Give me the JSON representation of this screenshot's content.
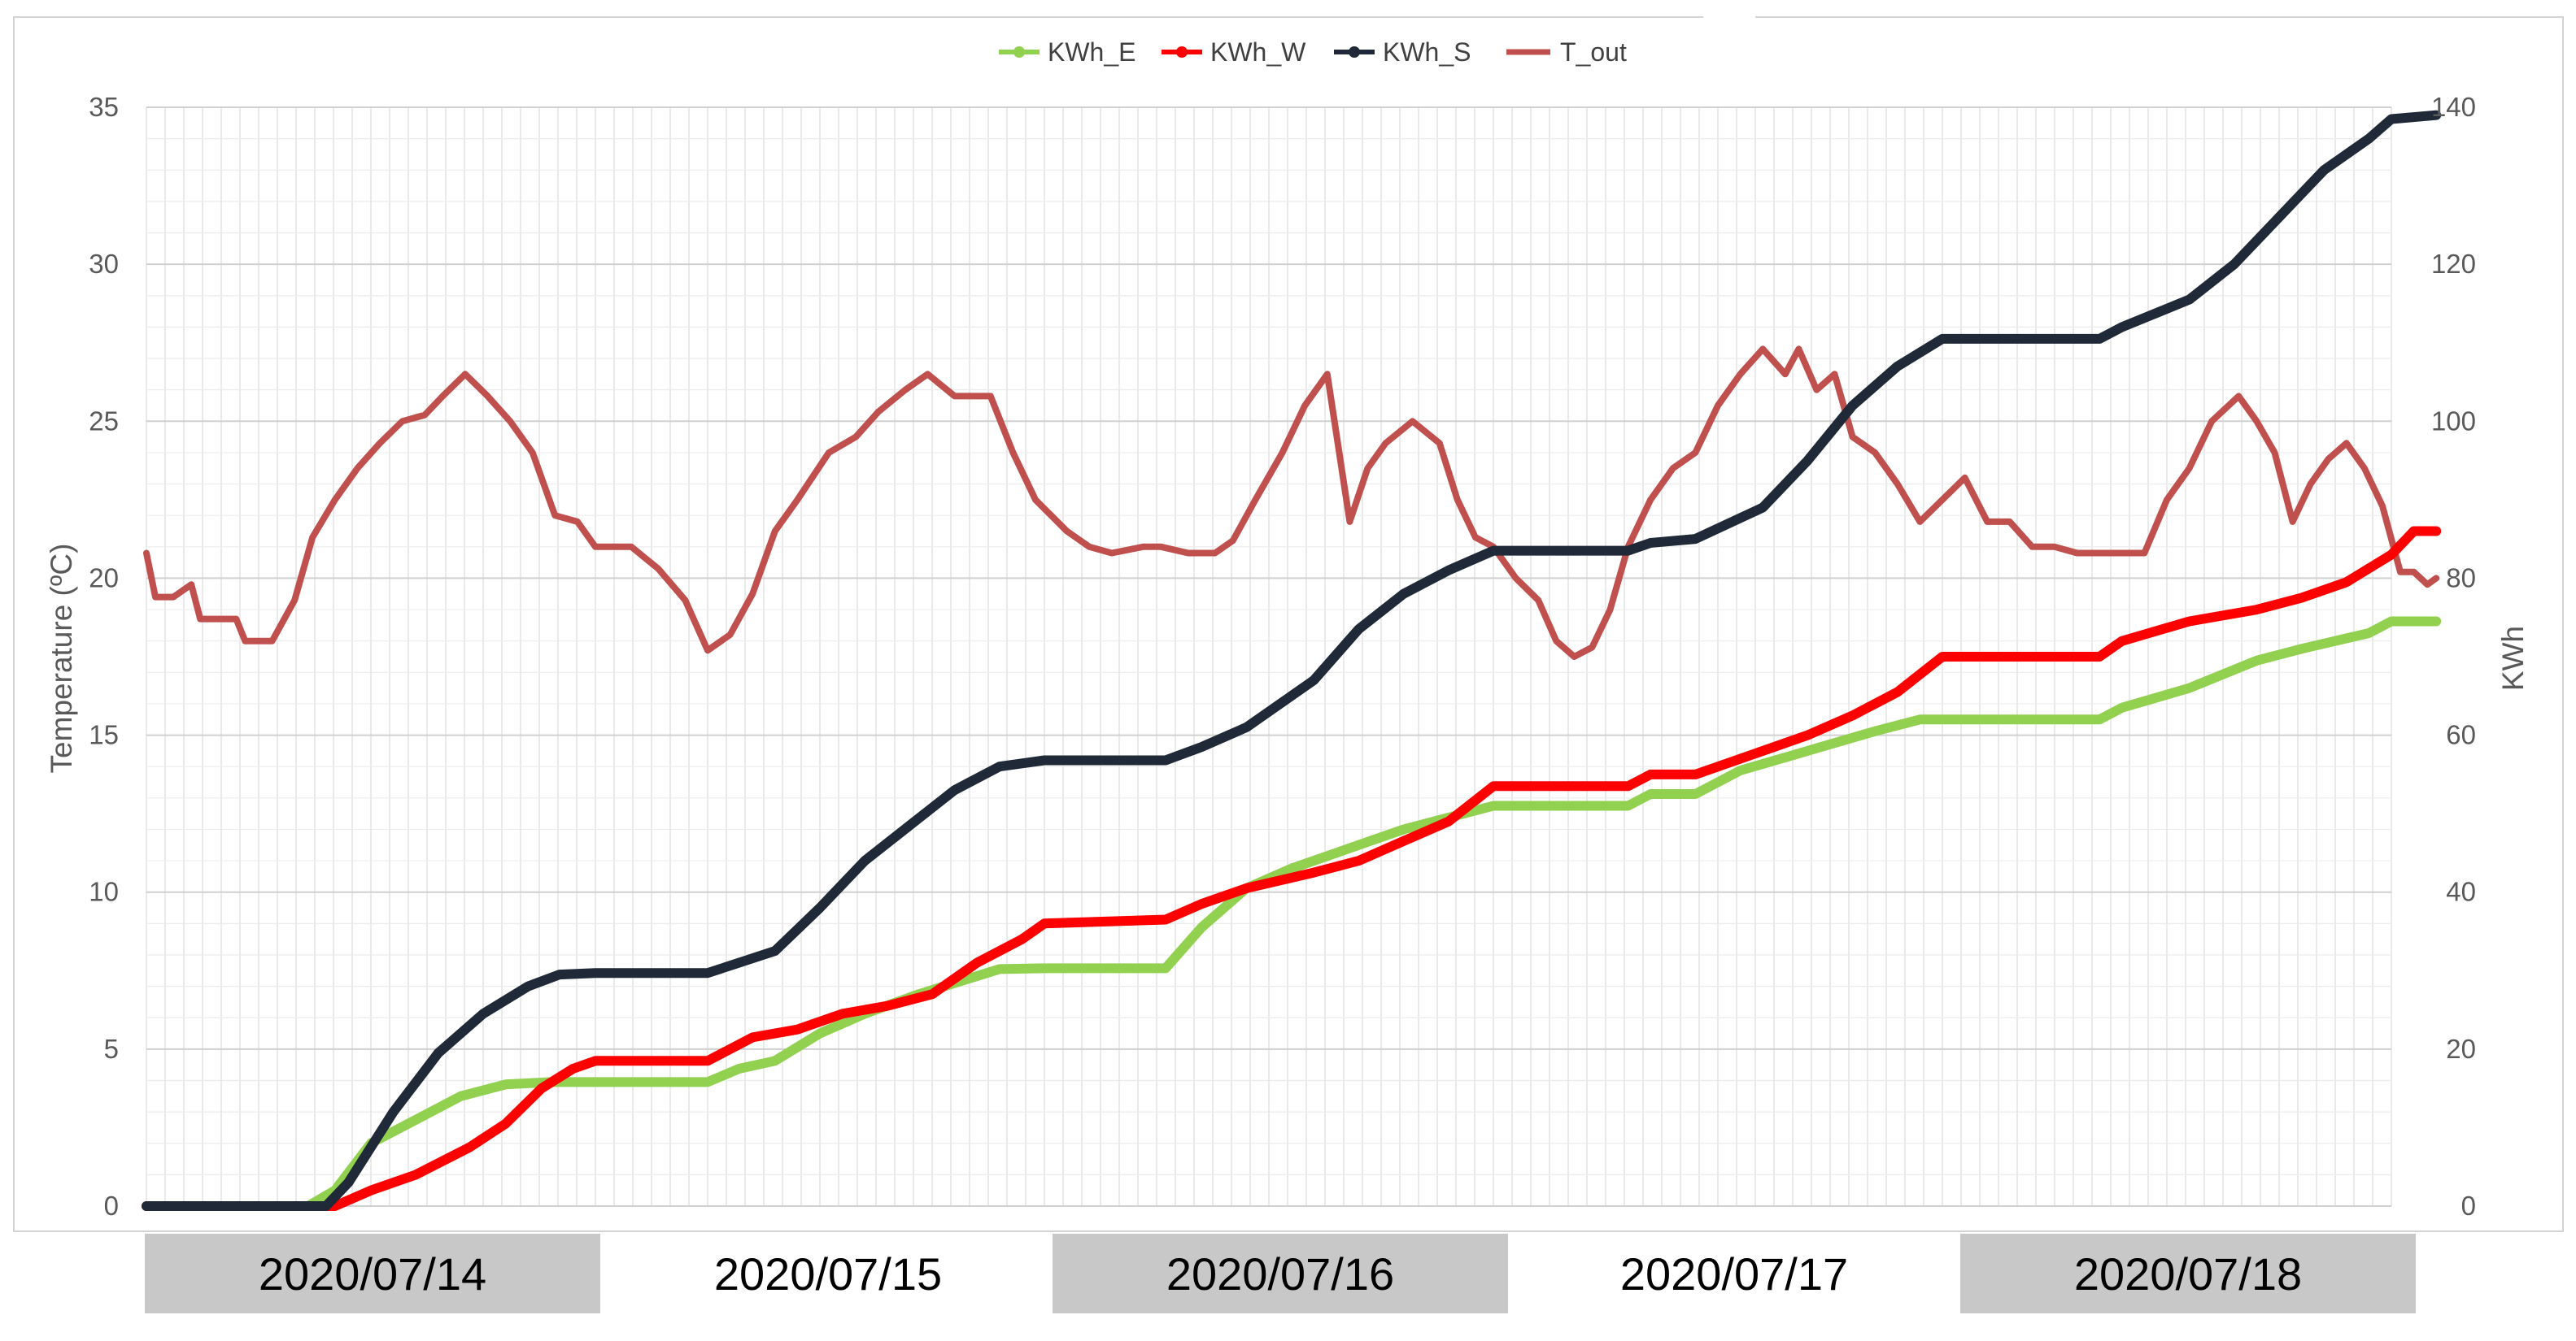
{
  "legend": [
    {
      "label": "KWh_E",
      "color": "#92d050"
    },
    {
      "label": "KWh_W",
      "color": "#ff0000"
    },
    {
      "label": "KWh_S",
      "color": "#1f2937"
    },
    {
      "label": "T_out",
      "color": "#c0504d"
    }
  ],
  "axes": {
    "left_title": "Temperature  (ºC)",
    "right_title": "KWh",
    "left_ticks": [
      "0",
      "5",
      "10",
      "15",
      "20",
      "25",
      "30",
      "35"
    ],
    "right_ticks": [
      "0",
      "20",
      "40",
      "60",
      "80",
      "100",
      "120",
      "140"
    ]
  },
  "dates": [
    {
      "label": "2020/07/14",
      "shaded": true
    },
    {
      "label": "2020/07/15",
      "shaded": false
    },
    {
      "label": "2020/07/16",
      "shaded": true
    },
    {
      "label": "2020/07/17",
      "shaded": false
    },
    {
      "label": "2020/07/18",
      "shaded": true
    }
  ],
  "chart_data": {
    "type": "line",
    "x_unit": "day",
    "x_range": [
      0,
      5
    ],
    "left_axis": {
      "ylim": [
        0,
        35
      ],
      "ylabel": "Temperature  (ºC)"
    },
    "right_axis": {
      "ylim": [
        0,
        140
      ],
      "ylabel": "KWh"
    },
    "grid": true,
    "legend_position": "top-center",
    "series": [
      {
        "name": "KWh_E",
        "axis": "right",
        "color": "#92d050",
        "points": [
          [
            0,
            0
          ],
          [
            0.27,
            0
          ],
          [
            0.36,
            0
          ],
          [
            0.42,
            2
          ],
          [
            0.5,
            8
          ],
          [
            0.6,
            11
          ],
          [
            0.7,
            14
          ],
          [
            0.8,
            15.5
          ],
          [
            0.9,
            15.8
          ],
          [
            1.0,
            15.8
          ],
          [
            1.25,
            15.8
          ],
          [
            1.32,
            17.5
          ],
          [
            1.4,
            18.5
          ],
          [
            1.5,
            22
          ],
          [
            1.6,
            24.5
          ],
          [
            1.72,
            27
          ],
          [
            1.85,
            29.3
          ],
          [
            1.9,
            30.2
          ],
          [
            2.0,
            30.3
          ],
          [
            2.27,
            30.3
          ],
          [
            2.35,
            35.5
          ],
          [
            2.45,
            40.5
          ],
          [
            2.55,
            43
          ],
          [
            2.65,
            45
          ],
          [
            2.8,
            48
          ],
          [
            2.9,
            49.5
          ],
          [
            3.0,
            51
          ],
          [
            3.3,
            51
          ],
          [
            3.35,
            52.5
          ],
          [
            3.45,
            52.5
          ],
          [
            3.55,
            55.5
          ],
          [
            3.7,
            58
          ],
          [
            3.85,
            60.5
          ],
          [
            3.95,
            62
          ],
          [
            4.0,
            62
          ],
          [
            4.35,
            62
          ],
          [
            4.4,
            63.5
          ],
          [
            4.55,
            66
          ],
          [
            4.7,
            69.5
          ],
          [
            4.8,
            71
          ],
          [
            4.95,
            73
          ],
          [
            5.0,
            74.5
          ],
          [
            5.1,
            74.5
          ]
        ]
      },
      {
        "name": "KWh_W",
        "axis": "right",
        "color": "#ff0000",
        "points": [
          [
            0,
            0
          ],
          [
            0.27,
            0
          ],
          [
            0.42,
            0
          ],
          [
            0.5,
            2
          ],
          [
            0.6,
            4
          ],
          [
            0.72,
            7.5
          ],
          [
            0.8,
            10.5
          ],
          [
            0.88,
            15
          ],
          [
            0.95,
            17.5
          ],
          [
            1.0,
            18.5
          ],
          [
            1.25,
            18.5
          ],
          [
            1.35,
            21.5
          ],
          [
            1.45,
            22.5
          ],
          [
            1.55,
            24.5
          ],
          [
            1.65,
            25.5
          ],
          [
            1.75,
            27
          ],
          [
            1.85,
            31
          ],
          [
            1.95,
            34
          ],
          [
            2.0,
            36
          ],
          [
            2.27,
            36.5
          ],
          [
            2.35,
            38.5
          ],
          [
            2.45,
            40.5
          ],
          [
            2.6,
            42.5
          ],
          [
            2.7,
            44
          ],
          [
            2.8,
            46.5
          ],
          [
            2.9,
            49
          ],
          [
            3.0,
            53.5
          ],
          [
            3.3,
            53.5
          ],
          [
            3.35,
            55
          ],
          [
            3.45,
            55
          ],
          [
            3.6,
            58
          ],
          [
            3.7,
            60
          ],
          [
            3.8,
            62.5
          ],
          [
            3.9,
            65.5
          ],
          [
            4.0,
            70
          ],
          [
            4.35,
            70
          ],
          [
            4.4,
            72
          ],
          [
            4.55,
            74.5
          ],
          [
            4.7,
            76
          ],
          [
            4.8,
            77.5
          ],
          [
            4.9,
            79.5
          ],
          [
            5.0,
            83
          ],
          [
            5.05,
            86
          ],
          [
            5.1,
            86
          ]
        ]
      },
      {
        "name": "KWh_S",
        "axis": "right",
        "color": "#1f2937",
        "points": [
          [
            0,
            0
          ],
          [
            0.4,
            0
          ],
          [
            0.45,
            3
          ],
          [
            0.55,
            12
          ],
          [
            0.65,
            19.5
          ],
          [
            0.75,
            24.5
          ],
          [
            0.85,
            28
          ],
          [
            0.92,
            29.5
          ],
          [
            1.0,
            29.7
          ],
          [
            1.25,
            29.7
          ],
          [
            1.32,
            31
          ],
          [
            1.4,
            32.5
          ],
          [
            1.5,
            38
          ],
          [
            1.6,
            44
          ],
          [
            1.7,
            48.5
          ],
          [
            1.8,
            53
          ],
          [
            1.9,
            56
          ],
          [
            2.0,
            56.8
          ],
          [
            2.27,
            56.8
          ],
          [
            2.35,
            58.5
          ],
          [
            2.45,
            61
          ],
          [
            2.6,
            67
          ],
          [
            2.7,
            73.5
          ],
          [
            2.8,
            78
          ],
          [
            2.9,
            81
          ],
          [
            3.0,
            83.5
          ],
          [
            3.3,
            83.5
          ],
          [
            3.35,
            84.5
          ],
          [
            3.45,
            85
          ],
          [
            3.6,
            89
          ],
          [
            3.7,
            95
          ],
          [
            3.8,
            102
          ],
          [
            3.9,
            107
          ],
          [
            4.0,
            110.5
          ],
          [
            4.35,
            110.5
          ],
          [
            4.4,
            112
          ],
          [
            4.55,
            115.5
          ],
          [
            4.65,
            120
          ],
          [
            4.75,
            126
          ],
          [
            4.85,
            132
          ],
          [
            4.95,
            136
          ],
          [
            5.0,
            138.5
          ],
          [
            5.1,
            139
          ]
        ]
      },
      {
        "name": "T_out",
        "axis": "left",
        "color": "#c0504d",
        "points": [
          [
            0,
            20.8
          ],
          [
            0.02,
            19.4
          ],
          [
            0.06,
            19.4
          ],
          [
            0.1,
            19.8
          ],
          [
            0.12,
            18.7
          ],
          [
            0.2,
            18.7
          ],
          [
            0.22,
            18
          ],
          [
            0.28,
            18
          ],
          [
            0.33,
            19.3
          ],
          [
            0.37,
            21.3
          ],
          [
            0.42,
            22.5
          ],
          [
            0.47,
            23.5
          ],
          [
            0.52,
            24.3
          ],
          [
            0.57,
            25
          ],
          [
            0.62,
            25.2
          ],
          [
            0.66,
            25.8
          ],
          [
            0.71,
            26.5
          ],
          [
            0.76,
            25.8
          ],
          [
            0.81,
            25
          ],
          [
            0.86,
            24
          ],
          [
            0.91,
            22
          ],
          [
            0.96,
            21.8
          ],
          [
            1.0,
            21
          ],
          [
            1.08,
            21
          ],
          [
            1.14,
            20.3
          ],
          [
            1.2,
            19.3
          ],
          [
            1.25,
            17.7
          ],
          [
            1.3,
            18.2
          ],
          [
            1.35,
            19.5
          ],
          [
            1.4,
            21.5
          ],
          [
            1.45,
            22.5
          ],
          [
            1.52,
            24
          ],
          [
            1.58,
            24.5
          ],
          [
            1.63,
            25.3
          ],
          [
            1.69,
            26
          ],
          [
            1.74,
            26.5
          ],
          [
            1.8,
            25.8
          ],
          [
            1.88,
            25.8
          ],
          [
            1.93,
            24
          ],
          [
            1.98,
            22.5
          ],
          [
            2.05,
            21.5
          ],
          [
            2.1,
            21
          ],
          [
            2.15,
            20.8
          ],
          [
            2.22,
            21
          ],
          [
            2.26,
            21
          ],
          [
            2.32,
            20.8
          ],
          [
            2.38,
            20.8
          ],
          [
            2.42,
            21.2
          ],
          [
            2.47,
            22.5
          ],
          [
            2.53,
            24
          ],
          [
            2.58,
            25.5
          ],
          [
            2.63,
            26.5
          ],
          [
            2.68,
            21.8
          ],
          [
            2.72,
            23.5
          ],
          [
            2.76,
            24.3
          ],
          [
            2.82,
            25
          ],
          [
            2.88,
            24.3
          ],
          [
            2.92,
            22.5
          ],
          [
            2.96,
            21.3
          ],
          [
            3.0,
            21
          ],
          [
            3.05,
            20
          ],
          [
            3.1,
            19.3
          ],
          [
            3.14,
            18
          ],
          [
            3.18,
            17.5
          ],
          [
            3.22,
            17.8
          ],
          [
            3.26,
            19
          ],
          [
            3.3,
            21
          ],
          [
            3.35,
            22.5
          ],
          [
            3.4,
            23.5
          ],
          [
            3.45,
            24
          ],
          [
            3.5,
            25.5
          ],
          [
            3.55,
            26.5
          ],
          [
            3.6,
            27.3
          ],
          [
            3.65,
            26.5
          ],
          [
            3.68,
            27.3
          ],
          [
            3.72,
            26
          ],
          [
            3.76,
            26.5
          ],
          [
            3.8,
            24.5
          ],
          [
            3.85,
            24
          ],
          [
            3.9,
            23
          ],
          [
            3.95,
            21.8
          ],
          [
            4.0,
            22.5
          ],
          [
            4.05,
            23.2
          ],
          [
            4.1,
            21.8
          ],
          [
            4.15,
            21.8
          ],
          [
            4.2,
            21
          ],
          [
            4.25,
            21
          ],
          [
            4.3,
            20.8
          ],
          [
            4.45,
            20.8
          ],
          [
            4.5,
            22.5
          ],
          [
            4.55,
            23.5
          ],
          [
            4.6,
            25
          ],
          [
            4.66,
            25.8
          ],
          [
            4.7,
            25
          ],
          [
            4.74,
            24
          ],
          [
            4.78,
            21.8
          ],
          [
            4.82,
            23
          ],
          [
            4.86,
            23.8
          ],
          [
            4.9,
            24.3
          ],
          [
            4.94,
            23.5
          ],
          [
            4.98,
            22.3
          ],
          [
            5.02,
            20.2
          ],
          [
            5.05,
            20.2
          ],
          [
            5.08,
            19.8
          ],
          [
            5.1,
            20
          ]
        ]
      }
    ]
  }
}
